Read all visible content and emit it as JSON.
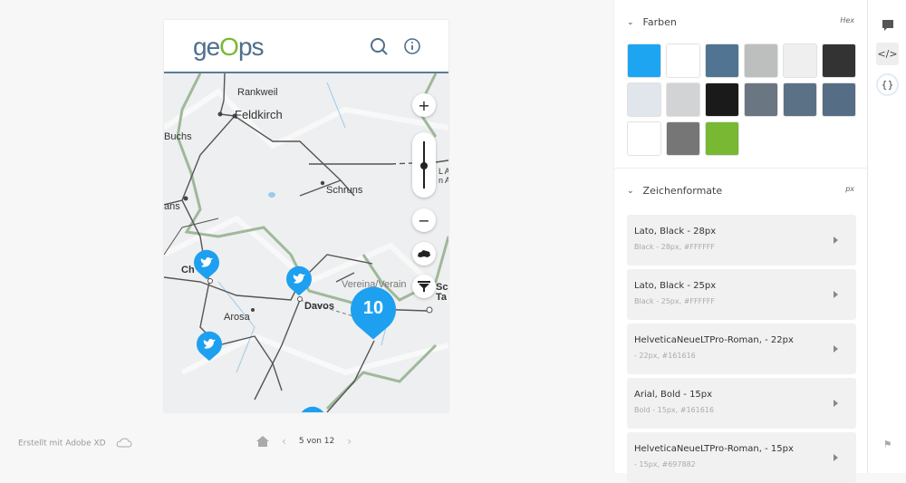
{
  "header": {
    "logo": "geops",
    "search_icon": "search-icon",
    "info_icon": "info-icon"
  },
  "map": {
    "labels": [
      "Rankweil",
      "Feldkirch",
      "Buchs",
      "Schruns",
      "ans",
      "Ch",
      "Arosa",
      "Davos",
      "Vereina/Verain",
      "Sc",
      "Ta",
      "L A",
      "n A"
    ],
    "controls": {
      "zoom_in": "+",
      "zoom_out": "−"
    },
    "zoom_level": 0.5,
    "cluster_count": "10",
    "marker_color": "#1ea0f0"
  },
  "footer": {
    "created_with": "Erstellt mit Adobe XD",
    "page_indicator": "5 von 12"
  },
  "panel": {
    "colors_section": {
      "title": "Farben",
      "unit": "Hex",
      "swatches": [
        "#1ea5f2",
        "#ffffff",
        "#507491",
        "#bdbfbf",
        "#efefef",
        "#333333",
        "#e1e6ec",
        "#d2d3d4",
        "#1a1a1a",
        "#6a7682",
        "#5b7186",
        "#566e85",
        "#ffffff",
        "#767676",
        "#78b833"
      ]
    },
    "text_section": {
      "title": "Zeichenformate",
      "unit": "px",
      "styles": [
        {
          "title": "Lato, Black - 28px",
          "sub": "Black - 28px, #FFFFFF"
        },
        {
          "title": "Lato, Black - 25px",
          "sub": "Black - 25px, #FFFFFF"
        },
        {
          "title": "HelveticaNeueLTPro-Roman, - 22px",
          "sub": "- 22px, #161616"
        },
        {
          "title": "Arial, Bold - 15px",
          "sub": "Bold - 15px, #161616"
        },
        {
          "title": "HelveticaNeueLTPro-Roman, - 15px",
          "sub": "- 15px, #697882"
        }
      ]
    }
  }
}
